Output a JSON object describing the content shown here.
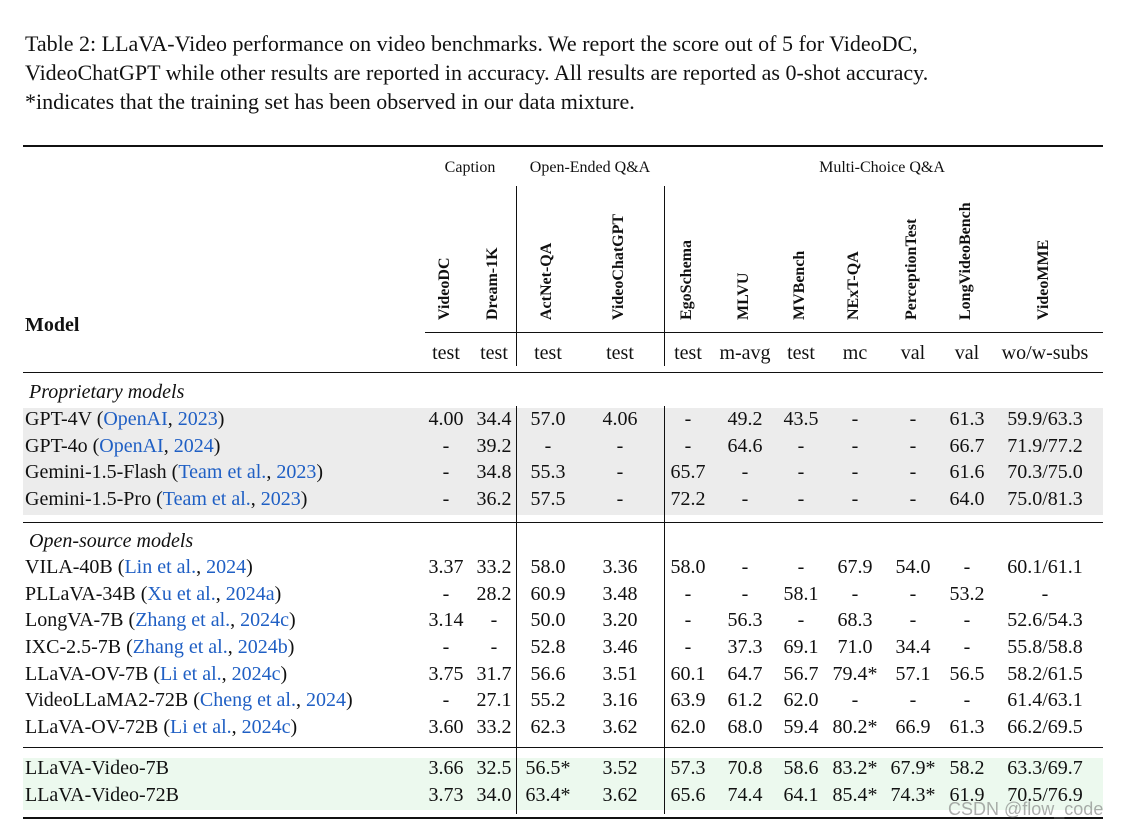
{
  "caption": [
    "Table 2: LLaVA-Video performance on video benchmarks. We report the score out of 5 for VideoDC,",
    "VideoChatGPT while other results are reported in accuracy. All results are reported as 0-shot accuracy.",
    "*indicates that the training set has been observed in our data mixture."
  ],
  "header": {
    "model": "Model",
    "groups": [
      "Caption",
      "Open-Ended Q&A",
      "Multi-Choice Q&A"
    ],
    "columns": [
      {
        "name": "VideoDC",
        "split": "test"
      },
      {
        "name": "Dream-1K",
        "split": "test"
      },
      {
        "name": "ActNet-QA",
        "split": "test"
      },
      {
        "name": "VideoChatGPT",
        "split": "test"
      },
      {
        "name": "EgoSchema",
        "split": "test"
      },
      {
        "name": "MLVU",
        "split": "m-avg"
      },
      {
        "name": "MVBench",
        "split": "test"
      },
      {
        "name": "NExT-QA",
        "split": "mc"
      },
      {
        "name": "PerceptionTest",
        "split": "val"
      },
      {
        "name": "LongVideoBench",
        "split": "val"
      },
      {
        "name": "VideoMME",
        "split": "wo/w-subs"
      }
    ]
  },
  "sections": [
    {
      "title": "Proprietary models",
      "rows": [
        {
          "model": [
            {
              "text": "GPT-4V ("
            },
            {
              "text": "OpenAI",
              "link": true
            },
            {
              "text": ", "
            },
            {
              "text": "2023",
              "link": true
            },
            {
              "text": ")"
            }
          ],
          "cells": [
            "4.00",
            "34.4",
            "57.0",
            "4.06",
            "-",
            "49.2",
            "43.5",
            "-",
            "-",
            "61.3",
            "59.9/63.3"
          ]
        },
        {
          "model": [
            {
              "text": "GPT-4o ("
            },
            {
              "text": "OpenAI",
              "link": true
            },
            {
              "text": ", "
            },
            {
              "text": "2024",
              "link": true
            },
            {
              "text": ")"
            }
          ],
          "cells": [
            "-",
            "39.2",
            "-",
            "-",
            "-",
            "64.6",
            "-",
            "-",
            "-",
            "66.7",
            "71.9/77.2"
          ]
        },
        {
          "model": [
            {
              "text": "Gemini-1.5-Flash ("
            },
            {
              "text": "Team et al.",
              "link": true
            },
            {
              "text": ", "
            },
            {
              "text": "2023",
              "link": true
            },
            {
              "text": ")"
            }
          ],
          "cells": [
            "-",
            "34.8",
            "55.3",
            "-",
            "65.7",
            "-",
            "-",
            "-",
            "-",
            "61.6",
            "70.3/75.0"
          ]
        },
        {
          "model": [
            {
              "text": "Gemini-1.5-Pro ("
            },
            {
              "text": "Team et al.",
              "link": true
            },
            {
              "text": ", "
            },
            {
              "text": "2023",
              "link": true
            },
            {
              "text": ")"
            }
          ],
          "cells": [
            "-",
            "36.2",
            "57.5",
            "-",
            "72.2",
            "-",
            "-",
            "-",
            "-",
            "64.0",
            "75.0/81.3"
          ]
        }
      ]
    },
    {
      "title": "Open-source models",
      "rows": [
        {
          "model": [
            {
              "text": "VILA-40B ("
            },
            {
              "text": "Lin et al.",
              "link": true
            },
            {
              "text": ", "
            },
            {
              "text": "2024",
              "link": true
            },
            {
              "text": ")"
            }
          ],
          "cells": [
            "3.37",
            "33.2",
            "58.0",
            "3.36",
            "58.0",
            "-",
            "-",
            "67.9",
            "54.0",
            "-",
            "60.1/61.1"
          ]
        },
        {
          "model": [
            {
              "text": "PLLaVA-34B ("
            },
            {
              "text": "Xu et al.",
              "link": true
            },
            {
              "text": ", "
            },
            {
              "text": "2024a",
              "link": true
            },
            {
              "text": ")"
            }
          ],
          "cells": [
            "-",
            "28.2",
            "60.9",
            "3.48",
            "-",
            "-",
            "58.1",
            "-",
            "-",
            "53.2",
            "-"
          ]
        },
        {
          "model": [
            {
              "text": "LongVA-7B ("
            },
            {
              "text": "Zhang et al.",
              "link": true
            },
            {
              "text": ", "
            },
            {
              "text": "2024c",
              "link": true
            },
            {
              "text": ")"
            }
          ],
          "cells": [
            "3.14",
            "-",
            "50.0",
            "3.20",
            "-",
            "56.3",
            "-",
            "68.3",
            "-",
            "-",
            "52.6/54.3"
          ]
        },
        {
          "model": [
            {
              "text": "IXC-2.5-7B ("
            },
            {
              "text": "Zhang et al.",
              "link": true
            },
            {
              "text": ", "
            },
            {
              "text": "2024b",
              "link": true
            },
            {
              "text": ")"
            }
          ],
          "cells": [
            "-",
            "-",
            "52.8",
            "3.46",
            "-",
            "37.3",
            "69.1",
            "71.0",
            "34.4",
            "-",
            "55.8/58.8"
          ]
        },
        {
          "model": [
            {
              "text": "LLaVA-OV-7B ("
            },
            {
              "text": "Li et al.",
              "link": true
            },
            {
              "text": ", "
            },
            {
              "text": "2024c",
              "link": true
            },
            {
              "text": ")"
            }
          ],
          "cells": [
            "3.75",
            "31.7",
            "56.6",
            "3.51",
            "60.1",
            "64.7",
            "56.7",
            "79.4*",
            "57.1",
            "56.5",
            "58.2/61.5"
          ]
        },
        {
          "model": [
            {
              "text": "VideoLLaMA2-72B ("
            },
            {
              "text": "Cheng et al.",
              "link": true
            },
            {
              "text": ", "
            },
            {
              "text": "2024",
              "link": true
            },
            {
              "text": ")"
            }
          ],
          "cells": [
            "-",
            "27.1",
            "55.2",
            "3.16",
            "63.9",
            "61.2",
            "62.0",
            "-",
            "-",
            "-",
            "61.4/63.1"
          ]
        },
        {
          "model": [
            {
              "text": "LLaVA-OV-72B ("
            },
            {
              "text": "Li et al.",
              "link": true
            },
            {
              "text": ", "
            },
            {
              "text": "2024c",
              "link": true
            },
            {
              "text": ")"
            }
          ],
          "cells": [
            "3.60",
            "33.2",
            "62.3",
            "3.62",
            "62.0",
            "68.0",
            "59.4",
            "80.2*",
            "66.9",
            "61.3",
            "66.2/69.5"
          ]
        }
      ]
    },
    {
      "rows": [
        {
          "model": [
            {
              "text": "LLaVA-Video-7B"
            }
          ],
          "cells": [
            "3.66",
            "32.5",
            "56.5*",
            "3.52",
            "57.3",
            "70.8",
            "58.6",
            "83.2*",
            "67.9*",
            "58.2",
            "63.3/69.7"
          ]
        },
        {
          "model": [
            {
              "text": "LLaVA-Video-72B"
            }
          ],
          "cells": [
            "3.73",
            "34.0",
            "63.4*",
            "3.62",
            "65.6",
            "74.4",
            "64.1",
            "85.4*",
            "74.3*",
            "61.9",
            "70.5/76.9"
          ]
        }
      ]
    }
  ],
  "watermark": "CSDN @flow_code"
}
